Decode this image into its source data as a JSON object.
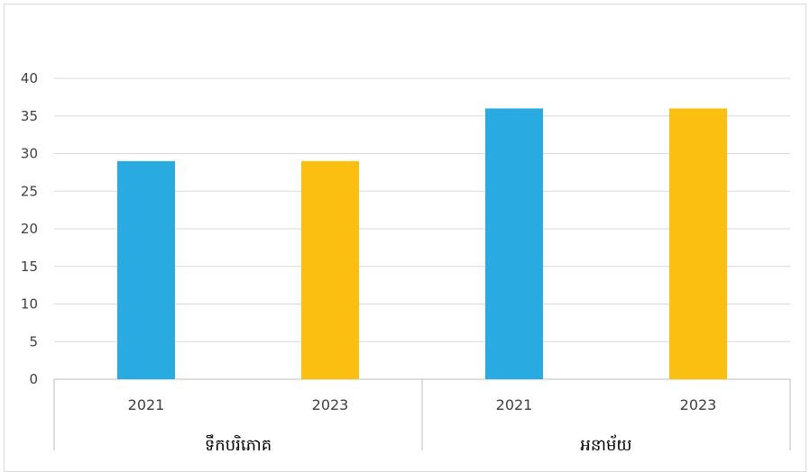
{
  "chart_data": {
    "type": "bar",
    "title": "",
    "xlabel": "",
    "ylabel": "",
    "ylim": [
      0,
      40
    ],
    "yticks": [
      0,
      5,
      10,
      15,
      20,
      25,
      30,
      35,
      40
    ],
    "grid": true,
    "legend": "none",
    "groups": [
      {
        "label": "ទឹកបរិភោគ",
        "bars": [
          {
            "category": "2021",
            "value": 29,
            "color": "#29ABE2"
          },
          {
            "category": "2023",
            "value": 29,
            "color": "#FBBF12"
          }
        ]
      },
      {
        "label": "អនាម័យ",
        "bars": [
          {
            "category": "2021",
            "value": 36,
            "color": "#29ABE2"
          },
          {
            "category": "2023",
            "value": 36,
            "color": "#FBBF12"
          }
        ]
      }
    ]
  }
}
